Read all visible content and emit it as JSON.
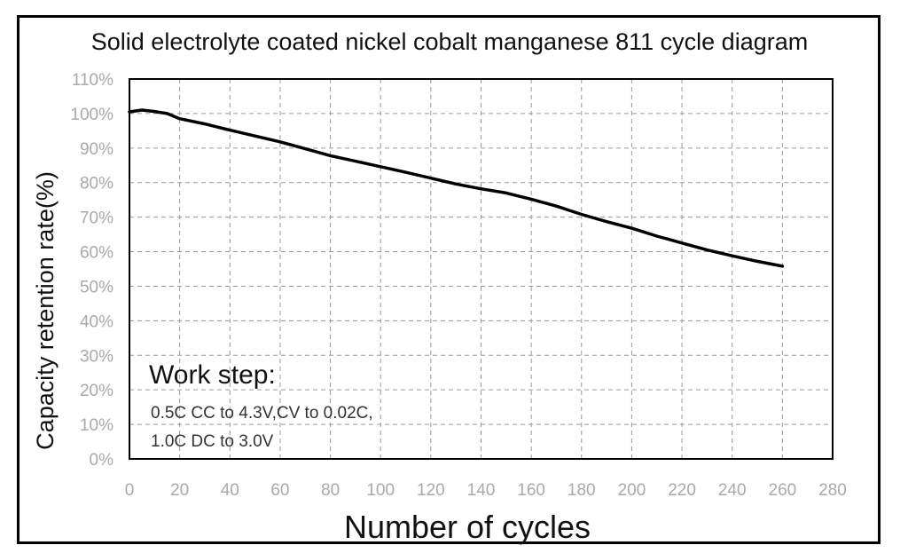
{
  "chart_data": {
    "type": "line",
    "title": "Solid electrolyte coated nickel cobalt manganese 811 cycle diagram",
    "xlabel": "Number of cycles",
    "ylabel": "Capacity retention rate(%)",
    "xlim": [
      0,
      280
    ],
    "ylim": [
      0,
      110
    ],
    "x_ticks": [
      "0",
      "20",
      "40",
      "60",
      "80",
      "100",
      "120",
      "140",
      "160",
      "180",
      "200",
      "220",
      "240",
      "260",
      "280"
    ],
    "y_ticks": [
      "0%",
      "10%",
      "20%",
      "30%",
      "40%",
      "50%",
      "60%",
      "70%",
      "80%",
      "90%",
      "100%",
      "110%"
    ],
    "x_tick_values": [
      0,
      20,
      40,
      60,
      80,
      100,
      120,
      140,
      160,
      180,
      200,
      220,
      240,
      260,
      280
    ],
    "y_tick_values": [
      0,
      10,
      20,
      30,
      40,
      50,
      60,
      70,
      80,
      90,
      100,
      110
    ],
    "grid": true,
    "series": [
      {
        "color": "#000000",
        "x": [
          0,
          5,
          10,
          15,
          20,
          30,
          40,
          50,
          60,
          70,
          80,
          90,
          100,
          110,
          120,
          130,
          140,
          150,
          160,
          170,
          180,
          190,
          200,
          210,
          220,
          230,
          240,
          250,
          260
        ],
        "y": [
          100.5,
          101,
          100.6,
          100,
          98.5,
          97,
          95.2,
          93.5,
          91.8,
          89.8,
          87.8,
          86.2,
          84.6,
          83,
          81.3,
          79.6,
          78.2,
          77,
          75.2,
          73.2,
          70.8,
          68.7,
          66.8,
          64.5,
          62.5,
          60.5,
          58.8,
          57.2,
          55.8
        ]
      }
    ],
    "annotation": {
      "heading": "Work step:",
      "lines": [
        "0.5C CC to 4.3V,CV to 0.02C,",
        "1.0C DC to 3.0V"
      ]
    }
  }
}
